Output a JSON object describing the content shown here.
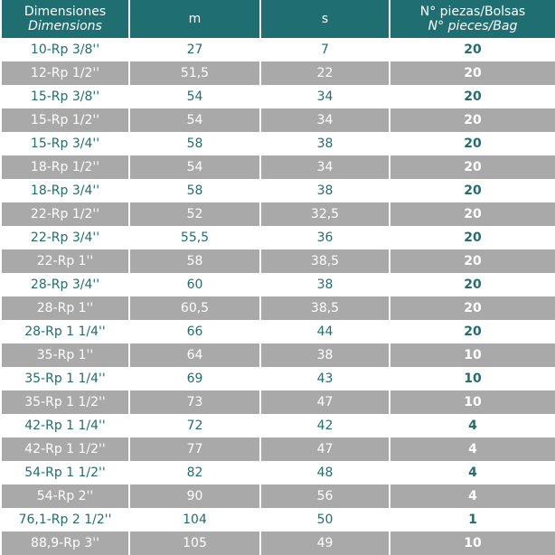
{
  "table": {
    "header": [
      {
        "title": "Dimensiones",
        "subtitle": "Dimensions"
      },
      {
        "title": "m"
      },
      {
        "title": "s"
      },
      {
        "title": "N° piezas/Bolsas",
        "subtitle": "N° pieces/Bag"
      }
    ],
    "rows": [
      [
        "10-Rp 3/8''",
        "27",
        "7",
        "20"
      ],
      [
        "12-Rp 1/2''",
        "51,5",
        "22",
        "20"
      ],
      [
        "15-Rp 3/8''",
        "54",
        "34",
        "20"
      ],
      [
        "15-Rp 1/2''",
        "54",
        "34",
        "20"
      ],
      [
        "15-Rp 3/4''",
        "58",
        "38",
        "20"
      ],
      [
        "18-Rp 1/2''",
        "54",
        "34",
        "20"
      ],
      [
        "18-Rp 3/4''",
        "58",
        "38",
        "20"
      ],
      [
        "22-Rp 1/2''",
        "52",
        "32,5",
        "20"
      ],
      [
        "22-Rp 3/4''",
        "55,5",
        "36",
        "20"
      ],
      [
        "22-Rp 1''",
        "58",
        "38,5",
        "20"
      ],
      [
        "28-Rp 3/4''",
        "60",
        "38",
        "20"
      ],
      [
        "28-Rp 1''",
        "60,5",
        "38,5",
        "20"
      ],
      [
        "28-Rp 1 1/4''",
        "66",
        "44",
        "20"
      ],
      [
        "35-Rp 1''",
        "64",
        "38",
        "10"
      ],
      [
        "35-Rp 1 1/4''",
        "69",
        "43",
        "10"
      ],
      [
        "35-Rp 1 1/2''",
        "73",
        "47",
        "10"
      ],
      [
        "42-Rp 1 1/4''",
        "72",
        "42",
        "4"
      ],
      [
        "42-Rp 1 1/2''",
        "77",
        "47",
        "4"
      ],
      [
        "54-Rp 1 1/2''",
        "82",
        "48",
        "4"
      ],
      [
        "54-Rp 2''",
        "90",
        "56",
        "4"
      ],
      [
        "76,1-Rp 2 1/2''",
        "104",
        "50",
        "1"
      ],
      [
        "88,9-Rp 3''",
        "105",
        "49",
        "10"
      ]
    ]
  }
}
